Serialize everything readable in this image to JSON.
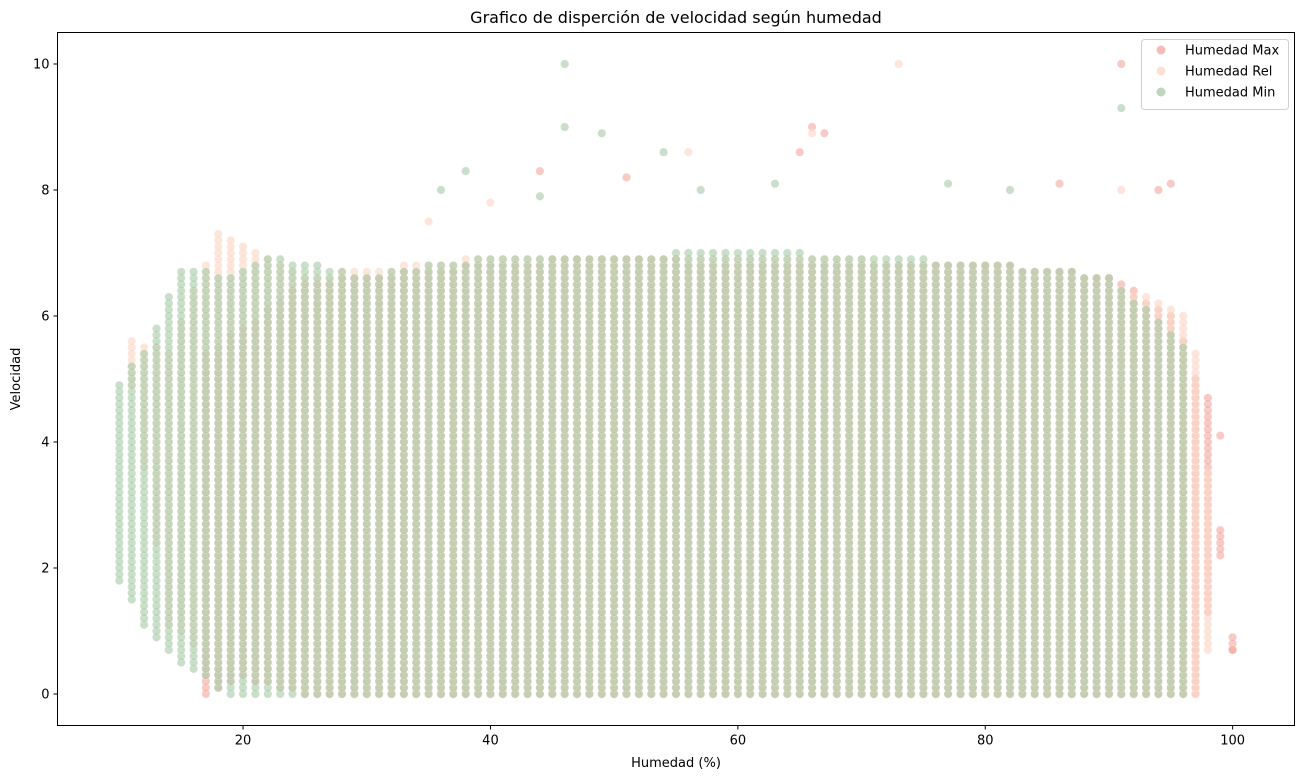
{
  "chart_data": {
    "type": "scatter",
    "title": "Grafico de disperción de velocidad según humedad",
    "xlabel": "Humedad (%)",
    "ylabel": "Velocidad",
    "xlim": [
      5,
      105
    ],
    "ylim": [
      -0.5,
      10.5
    ],
    "xticks": [
      20,
      40,
      60,
      80,
      100
    ],
    "yticks": [
      0,
      2,
      4,
      6,
      8,
      10
    ],
    "grid": false,
    "legend_position": "top-right",
    "series": [
      {
        "name": "Humedad Max",
        "color": "#f4a6a0",
        "x_range": [
          17,
          100
        ],
        "density_profile": [
          [
            17,
            0.0,
            5.4
          ],
          [
            20,
            0.3,
            5.8
          ],
          [
            25,
            0.0,
            6.5
          ],
          [
            30,
            0.0,
            6.6
          ],
          [
            40,
            0.0,
            6.8
          ],
          [
            50,
            0.0,
            6.9
          ],
          [
            60,
            0.0,
            6.8
          ],
          [
            70,
            0.0,
            6.8
          ],
          [
            80,
            0.0,
            6.8
          ],
          [
            90,
            0.0,
            6.6
          ],
          [
            95,
            0.0,
            6.0
          ],
          [
            96,
            0.0,
            5.6
          ],
          [
            97,
            0.0,
            5.0
          ],
          [
            98,
            1.3,
            4.7
          ],
          [
            99,
            2.2,
            2.6
          ],
          [
            100,
            0.7,
            0.9
          ]
        ],
        "outliers": [
          {
            "x": 44,
            "y": 8.3
          },
          {
            "x": 51,
            "y": 8.2
          },
          {
            "x": 65,
            "y": 8.6
          },
          {
            "x": 66,
            "y": 9.0
          },
          {
            "x": 67,
            "y": 8.9
          },
          {
            "x": 86,
            "y": 8.1
          },
          {
            "x": 91,
            "y": 10.0
          },
          {
            "x": 94,
            "y": 8.0
          },
          {
            "x": 95,
            "y": 8.1
          },
          {
            "x": 99,
            "y": 4.1
          },
          {
            "x": 100,
            "y": 0.7
          }
        ]
      },
      {
        "name": "Humedad Rel",
        "color": "#fad6c4",
        "x_range": [
          11,
          98
        ],
        "density_profile": [
          [
            11,
            4.9,
            5.6
          ],
          [
            14,
            1.1,
            5.4
          ],
          [
            18,
            0.5,
            7.3
          ],
          [
            25,
            0.0,
            6.6
          ],
          [
            40,
            0.0,
            6.9
          ],
          [
            60,
            0.0,
            6.9
          ],
          [
            80,
            0.0,
            6.8
          ],
          [
            90,
            0.0,
            6.5
          ],
          [
            96,
            0.0,
            6.0
          ],
          [
            97,
            0.0,
            5.4
          ],
          [
            98,
            0.7,
            3.5
          ]
        ],
        "outliers": [
          {
            "x": 35,
            "y": 7.5
          },
          {
            "x": 40,
            "y": 7.8
          },
          {
            "x": 56,
            "y": 8.6
          },
          {
            "x": 73,
            "y": 10.0
          },
          {
            "x": 66,
            "y": 8.9
          },
          {
            "x": 91,
            "y": 8.0
          }
        ]
      },
      {
        "name": "Humedad Min",
        "color": "#a7c9a5",
        "x_range": [
          10,
          96
        ],
        "density_profile": [
          [
            10,
            1.8,
            4.9
          ],
          [
            12,
            1.1,
            5.4
          ],
          [
            15,
            0.5,
            6.7
          ],
          [
            19,
            0.0,
            6.6
          ],
          [
            22,
            0.0,
            6.9
          ],
          [
            30,
            0.0,
            6.6
          ],
          [
            40,
            0.0,
            6.9
          ],
          [
            50,
            0.0,
            6.9
          ],
          [
            60,
            0.0,
            7.0
          ],
          [
            70,
            0.0,
            6.9
          ],
          [
            80,
            0.0,
            6.8
          ],
          [
            90,
            0.0,
            6.6
          ],
          [
            96,
            0.0,
            5.5
          ]
        ],
        "outliers": [
          {
            "x": 36,
            "y": 8.0
          },
          {
            "x": 38,
            "y": 8.3
          },
          {
            "x": 44,
            "y": 7.9
          },
          {
            "x": 46,
            "y": 9.0
          },
          {
            "x": 46,
            "y": 10.0
          },
          {
            "x": 49,
            "y": 8.9
          },
          {
            "x": 54,
            "y": 8.6
          },
          {
            "x": 57,
            "y": 8.0
          },
          {
            "x": 63,
            "y": 8.1
          },
          {
            "x": 77,
            "y": 8.1
          },
          {
            "x": 82,
            "y": 8.0
          },
          {
            "x": 91,
            "y": 9.3
          }
        ]
      }
    ]
  }
}
